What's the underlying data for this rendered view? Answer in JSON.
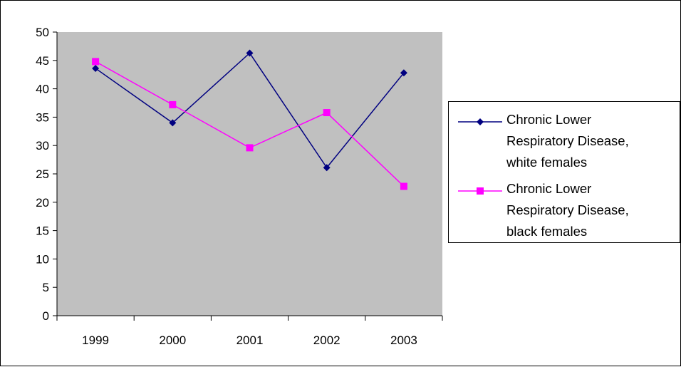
{
  "chart_data": {
    "type": "line",
    "categories": [
      "1999",
      "2000",
      "2001",
      "2002",
      "2003"
    ],
    "ylim": [
      0,
      50
    ],
    "yticks": [
      0,
      5,
      10,
      15,
      20,
      25,
      30,
      35,
      40,
      45,
      50
    ],
    "grid": false,
    "plot_background": "#c0c0c0",
    "legend_position": "right",
    "series": [
      {
        "name": "Chronic Lower Respiratory Disease, white females",
        "legend_lines": [
          "Chronic Lower",
          "Respiratory Disease,",
          "white females"
        ],
        "values": [
          43.6,
          34.0,
          46.3,
          26.1,
          42.8
        ],
        "color": "#000080",
        "marker": "diamond"
      },
      {
        "name": "Chronic Lower Respiratory Disease, black females",
        "legend_lines": [
          "Chronic Lower",
          "Respiratory Disease,",
          "black females"
        ],
        "values": [
          44.8,
          37.2,
          29.6,
          35.8,
          22.8
        ],
        "color": "#ff00ff",
        "marker": "square"
      }
    ]
  }
}
